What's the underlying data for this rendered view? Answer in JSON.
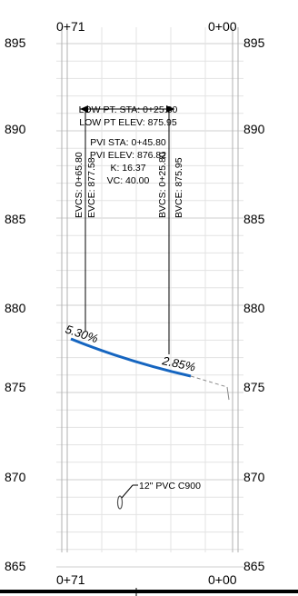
{
  "profile": {
    "station_labels": {
      "left": "0+71",
      "right": "0+00"
    },
    "elevations": [
      "895",
      "890",
      "885",
      "880",
      "875",
      "870",
      "865"
    ],
    "curve_labels": {
      "low_pt_sta": "LOW PT. STA: 0+25.80",
      "low_pt_elev": "LOW PT ELEV: 875.95",
      "pvi_sta": "PVI STA: 0+45.80",
      "pvi_elev": "PVI ELEV: 876.82",
      "k": "K: 16.37",
      "vc": "VC: 40.00"
    },
    "vertical_labels": {
      "evcs": "EVCS: 0+65.80",
      "evce": "EVCE: 877.58",
      "bvcs": "BVCS: 0+25.80",
      "bvce": "BVCE: 875.95"
    },
    "grades": {
      "left": "5.30%",
      "right": "2.85%"
    },
    "pipe_note": "12\" PVC C900",
    "colors": {
      "profile_line": "#1565c0",
      "grid": "#e3e3e3",
      "grid_major": "#cfcfcf"
    }
  }
}
